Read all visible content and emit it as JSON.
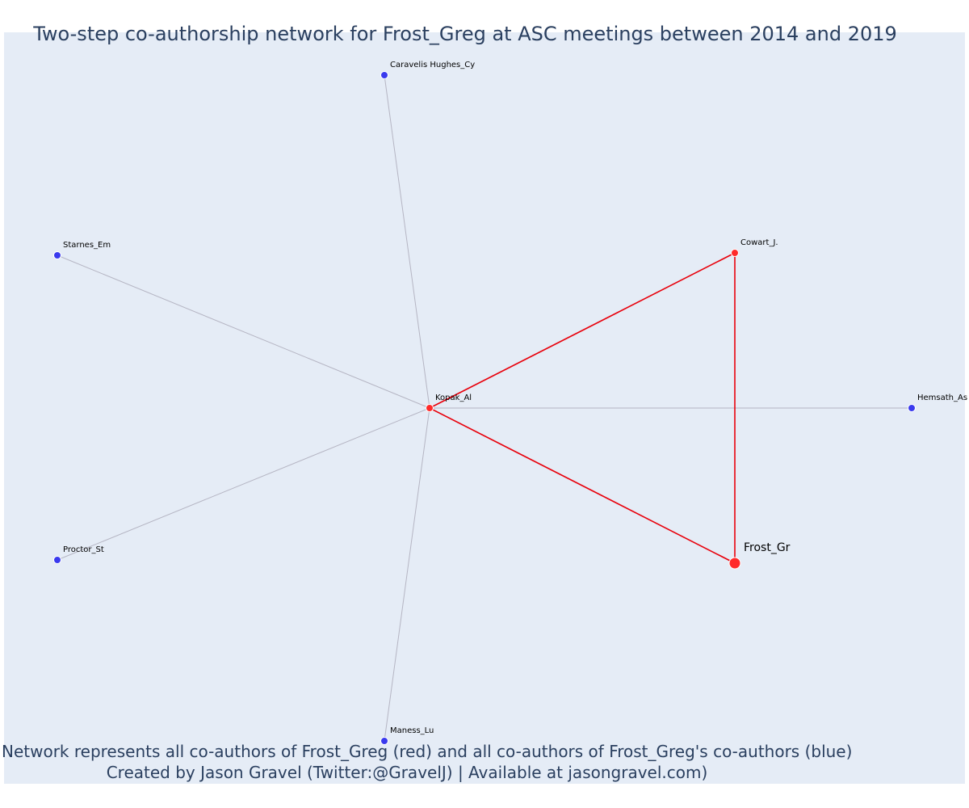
{
  "title": "Two-step co-authorship network for Frost_Greg at ASC meetings between 2014 and 2019",
  "caption_lines": [
    "Network represents all co-authors of Frost_Greg (red) and all co-authors of Frost_Greg's co-authors (blue)",
    "Created by Jason Gravel (Twitter:@GravelJ) | Available at jasongravel.com)"
  ],
  "colors": {
    "plot_background": "#e5ecf6",
    "first_step": "#ff2a2a",
    "second_step": "#3a3aee",
    "first_step_edge": "#e8000b",
    "second_step_edge": "#b5b5c3",
    "text": "#2a3f5f"
  },
  "chart_data": {
    "type": "network",
    "nodes": [
      {
        "id": "Frost_Gr",
        "label": "Frost_Gr",
        "group": "focal"
      },
      {
        "id": "Kopak_Al",
        "label": "Kopak_Al",
        "group": "co-author"
      },
      {
        "id": "Cowart_J.",
        "label": "Cowart_J.",
        "group": "co-author"
      },
      {
        "id": "Caravelis Hughes_Cy",
        "label": "Caravelis Hughes_Cy",
        "group": "second-step"
      },
      {
        "id": "Starnes_Em",
        "label": "Starnes_Em",
        "group": "second-step"
      },
      {
        "id": "Hemsath_As",
        "label": "Hemsath_As",
        "group": "second-step"
      },
      {
        "id": "Proctor_St",
        "label": "Proctor_St",
        "group": "second-step"
      },
      {
        "id": "Maness_Lu",
        "label": "Maness_Lu",
        "group": "second-step"
      }
    ],
    "edges": [
      {
        "source": "Kopak_Al",
        "target": "Cowart_J.",
        "type": "first"
      },
      {
        "source": "Kopak_Al",
        "target": "Frost_Gr",
        "type": "first"
      },
      {
        "source": "Cowart_J.",
        "target": "Frost_Gr",
        "type": "first"
      },
      {
        "source": "Kopak_Al",
        "target": "Caravelis Hughes_Cy",
        "type": "second"
      },
      {
        "source": "Kopak_Al",
        "target": "Starnes_Em",
        "type": "second"
      },
      {
        "source": "Kopak_Al",
        "target": "Hemsath_As",
        "type": "second"
      },
      {
        "source": "Kopak_Al",
        "target": "Proctor_St",
        "type": "second"
      },
      {
        "source": "Kopak_Al",
        "target": "Maness_Lu",
        "type": "second"
      }
    ]
  }
}
